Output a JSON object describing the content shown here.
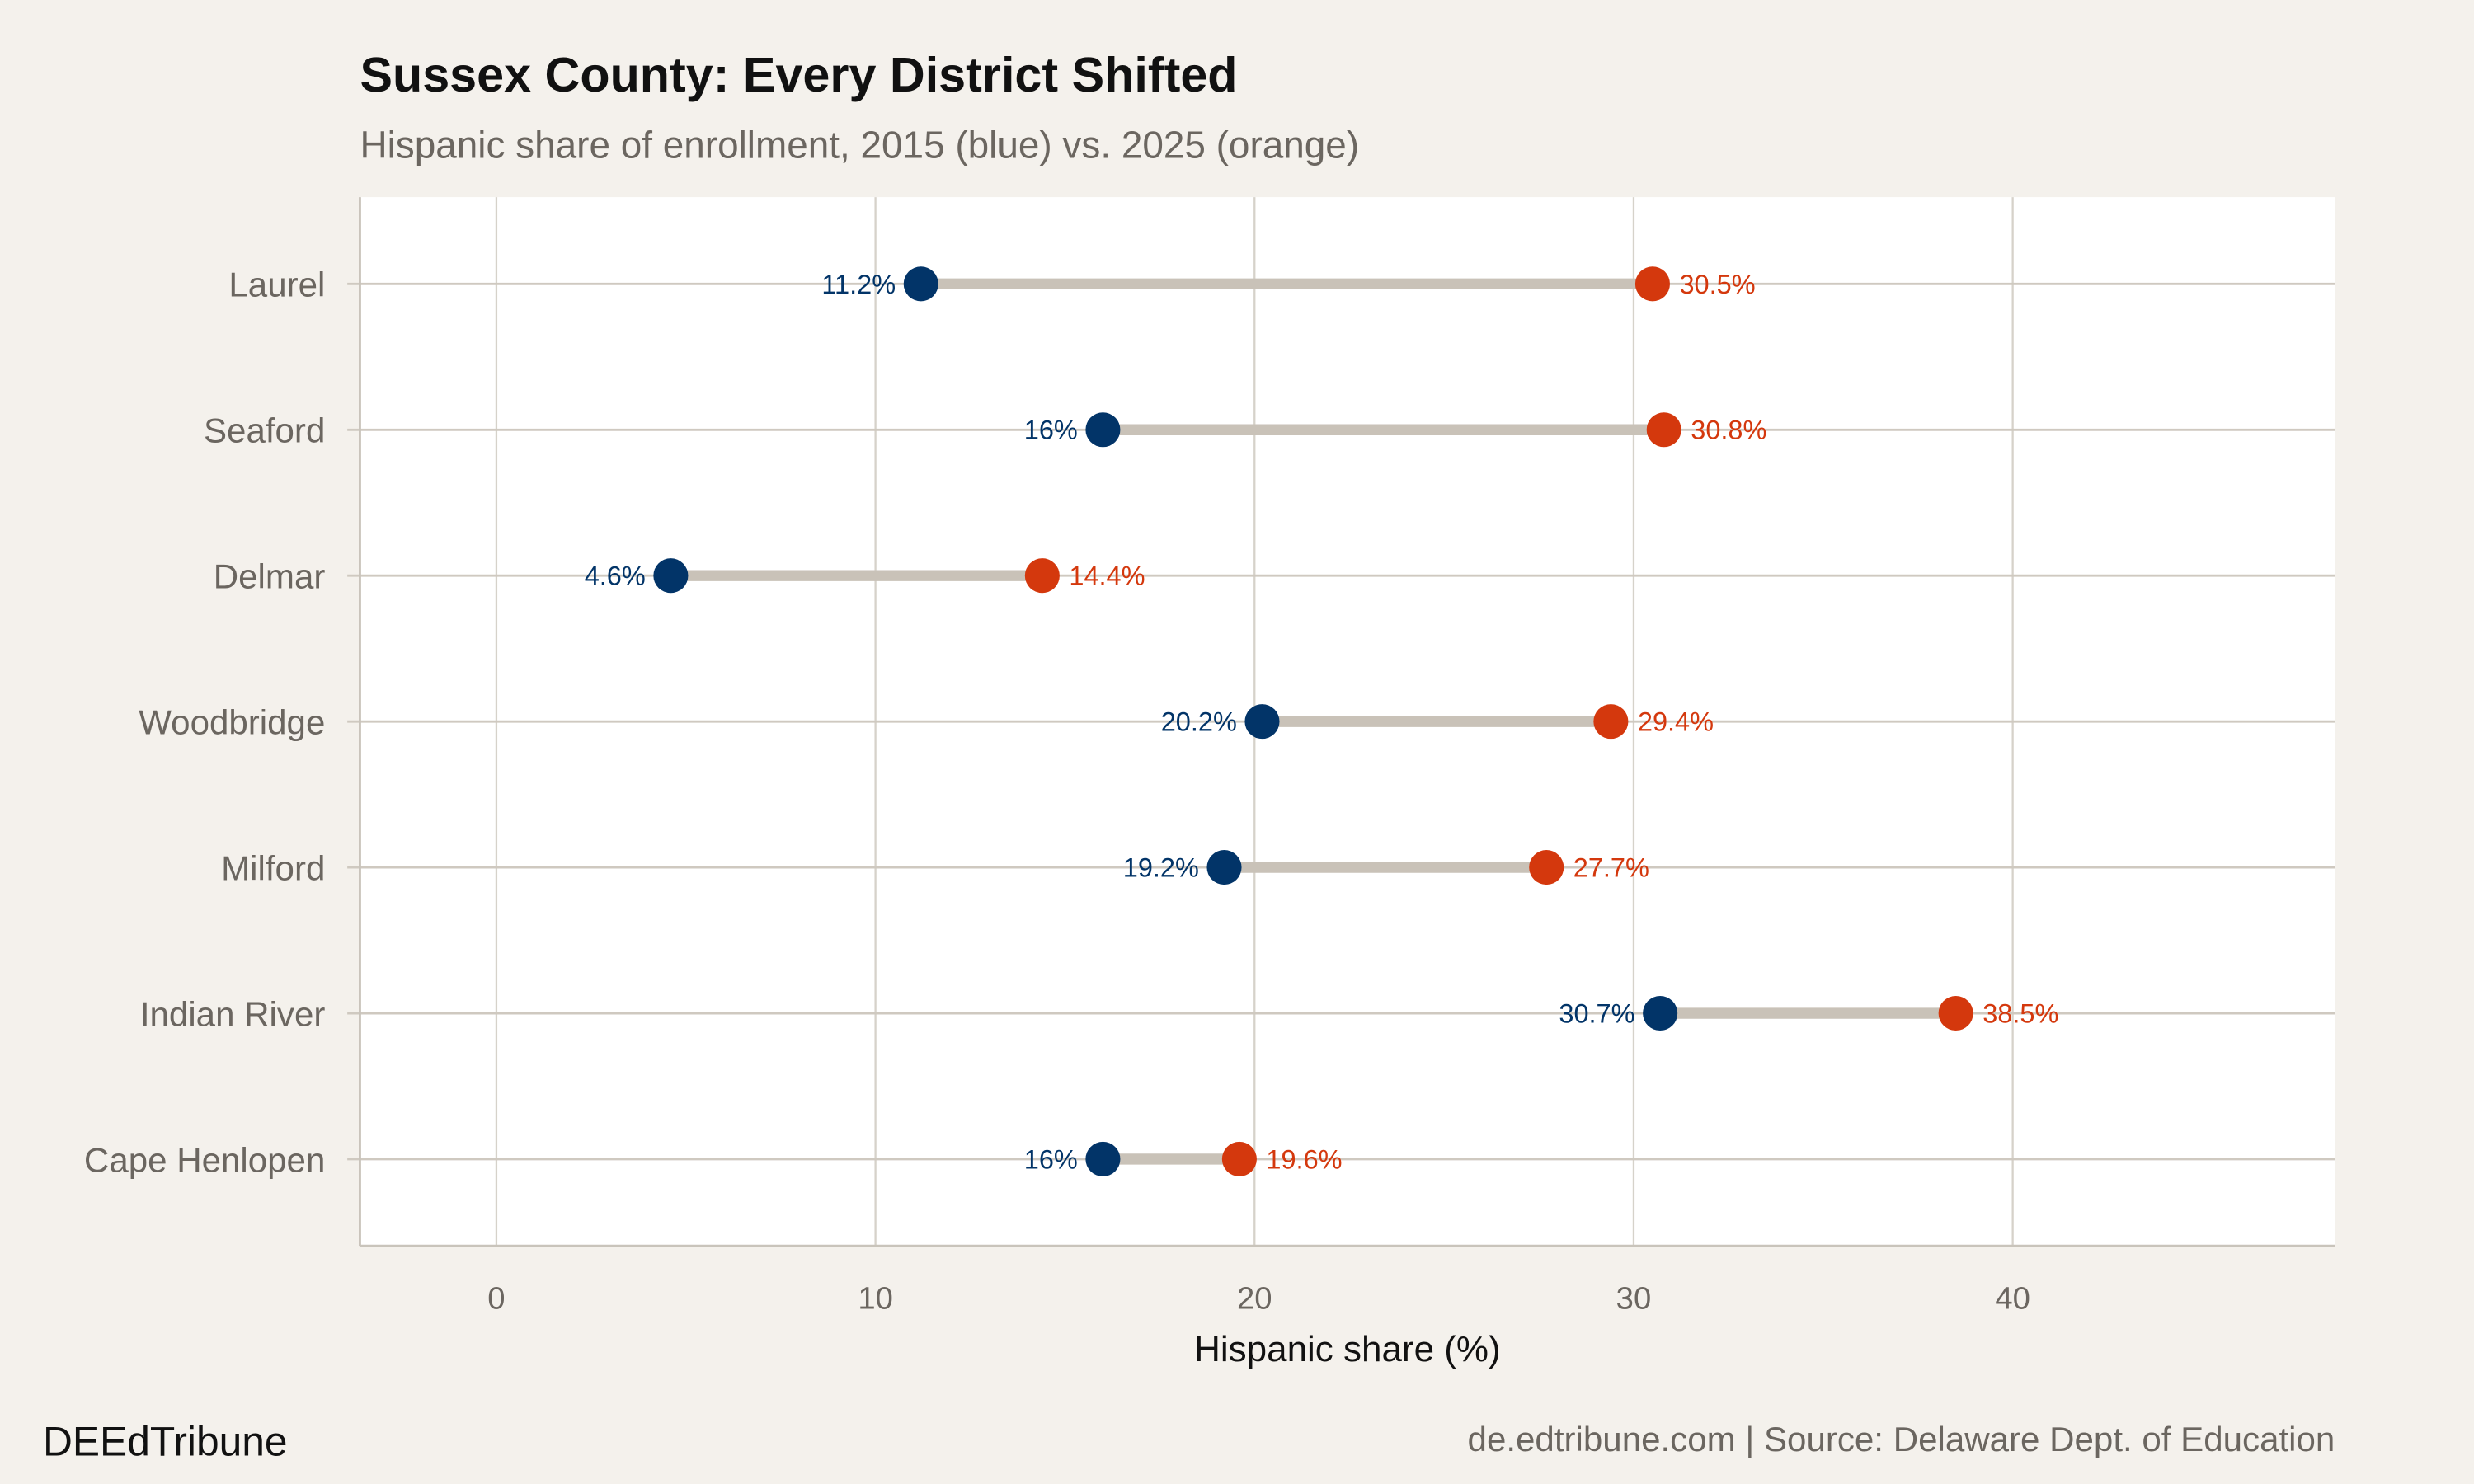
{
  "chart_data": {
    "type": "dumbbell",
    "title": "Sussex County: Every District Shifted",
    "subtitle": "Hispanic share of enrollment, 2015 (blue) vs. 2025 (orange)",
    "xlabel": "Hispanic share (%)",
    "ylabel": "",
    "xlim": [
      -3.6,
      48.5
    ],
    "xticks": [
      0,
      10,
      20,
      30,
      40
    ],
    "grid": true,
    "categories": [
      "Laurel",
      "Seaford",
      "Delmar",
      "Woodbridge",
      "Milford",
      "Indian River",
      "Cape Henlopen"
    ],
    "series": [
      {
        "year": "2015",
        "color": "#023468",
        "values": [
          11.2,
          16,
          4.6,
          20.2,
          19.2,
          30.7,
          16
        ],
        "labels": [
          "11.2%",
          "16%",
          "4.6%",
          "20.2%",
          "19.2%",
          "30.7%",
          "16%"
        ]
      },
      {
        "year": "2025",
        "color": "#d4380d",
        "values": [
          30.5,
          30.8,
          14.4,
          29.4,
          27.7,
          38.5,
          19.6
        ],
        "labels": [
          "30.5%",
          "30.8%",
          "14.4%",
          "29.4%",
          "27.7%",
          "38.5%",
          "19.6%"
        ]
      }
    ],
    "segment_color": "#c9c2b8"
  },
  "footer": {
    "brand": "DEEdTribune",
    "source": "de.edtribune.com | Source: Delaware Dept. of Education"
  }
}
